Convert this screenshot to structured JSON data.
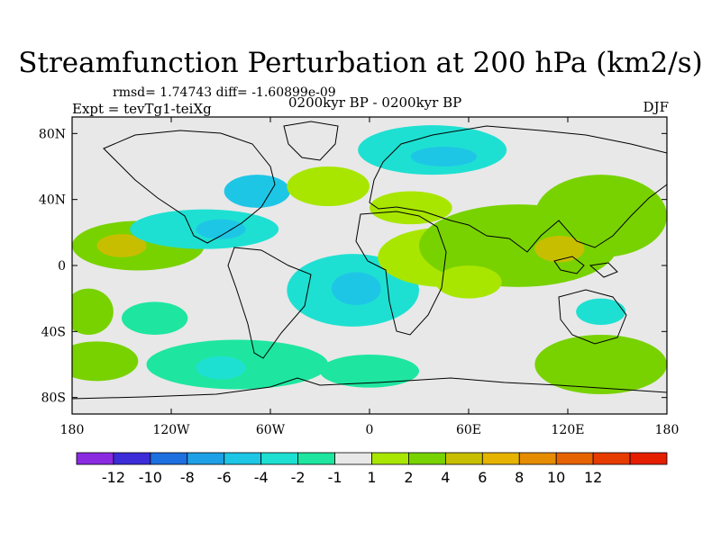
{
  "chart_data": {
    "type": "heatmap",
    "title": "Streamfunction Perturbation at 200 hPa (km2/s)",
    "stats": "rmsd= 1.74743 diff= -1.60899e-09",
    "left_label": "Expt = tevTg1-teiXg",
    "center_label": "0200kyr BP - 0200kyr BP",
    "right_label": "DJF",
    "xlim": [
      -180,
      180
    ],
    "ylim": [
      -90,
      90
    ],
    "x_ticks": [
      {
        "v": -180,
        "label": "180"
      },
      {
        "v": -120,
        "label": "120W"
      },
      {
        "v": -60,
        "label": "60W"
      },
      {
        "v": 0,
        "label": "0"
      },
      {
        "v": 60,
        "label": "60E"
      },
      {
        "v": 120,
        "label": "120E"
      },
      {
        "v": 180,
        "label": "180"
      }
    ],
    "y_ticks": [
      {
        "v": 80,
        "label": "80N"
      },
      {
        "v": 40,
        "label": "40N"
      },
      {
        "v": 0,
        "label": "0"
      },
      {
        "v": -40,
        "label": "40S"
      },
      {
        "v": -80,
        "label": "80S"
      }
    ],
    "colorbar": {
      "colors": [
        "#8a2be2",
        "#3c2dd8",
        "#1e6fe0",
        "#1ea0e6",
        "#1ec6e6",
        "#1ee0d2",
        "#1ee6a0",
        "#e8e8e8",
        "#a8e600",
        "#78d200",
        "#c8be00",
        "#e6b400",
        "#e68c00",
        "#e66400",
        "#e63c00",
        "#e61e00"
      ],
      "labels": [
        "-12",
        "-10",
        "-8",
        "-6",
        "-4",
        "-2",
        "-1",
        "1",
        "2",
        "4",
        "6",
        "8",
        "10",
        "12"
      ]
    },
    "regions": [
      {
        "lon": -140,
        "lat": 12,
        "rx": 40,
        "ry": 15,
        "level": 9
      },
      {
        "lon": -150,
        "lat": 12,
        "rx": 15,
        "ry": 7,
        "level": 10
      },
      {
        "lon": -100,
        "lat": 22,
        "rx": 45,
        "ry": 12,
        "level": 5
      },
      {
        "lon": -90,
        "lat": 22,
        "rx": 15,
        "ry": 6,
        "level": 4
      },
      {
        "lon": -68,
        "lat": 45,
        "rx": 20,
        "ry": 10,
        "level": 4
      },
      {
        "lon": -25,
        "lat": 48,
        "rx": 25,
        "ry": 12,
        "level": 8
      },
      {
        "lon": 38,
        "lat": 70,
        "rx": 45,
        "ry": 15,
        "level": 5
      },
      {
        "lon": 45,
        "lat": 66,
        "rx": 20,
        "ry": 6,
        "level": 4
      },
      {
        "lon": 25,
        "lat": 35,
        "rx": 25,
        "ry": 10,
        "level": 8
      },
      {
        "lon": -10,
        "lat": -15,
        "rx": 40,
        "ry": 22,
        "level": 5
      },
      {
        "lon": -8,
        "lat": -14,
        "rx": 15,
        "ry": 10,
        "level": 4
      },
      {
        "lon": 45,
        "lat": 5,
        "rx": 40,
        "ry": 18,
        "level": 8
      },
      {
        "lon": 90,
        "lat": 12,
        "rx": 60,
        "ry": 25,
        "level": 9
      },
      {
        "lon": 140,
        "lat": 30,
        "rx": 40,
        "ry": 25,
        "level": 9
      },
      {
        "lon": 115,
        "lat": 10,
        "rx": 15,
        "ry": 8,
        "level": 10
      },
      {
        "lon": -170,
        "lat": -28,
        "rx": 15,
        "ry": 14,
        "level": 9
      },
      {
        "lon": -130,
        "lat": -32,
        "rx": 20,
        "ry": 10,
        "level": 6
      },
      {
        "lon": -165,
        "lat": -58,
        "rx": 25,
        "ry": 12,
        "level": 9
      },
      {
        "lon": -80,
        "lat": -60,
        "rx": 55,
        "ry": 15,
        "level": 6
      },
      {
        "lon": -90,
        "lat": -62,
        "rx": 15,
        "ry": 7,
        "level": 5
      },
      {
        "lon": 0,
        "lat": -64,
        "rx": 30,
        "ry": 10,
        "level": 6
      },
      {
        "lon": 140,
        "lat": -60,
        "rx": 40,
        "ry": 18,
        "level": 9
      },
      {
        "lon": 140,
        "lat": -28,
        "rx": 15,
        "ry": 8,
        "level": 5
      },
      {
        "lon": 60,
        "lat": -10,
        "rx": 20,
        "ry": 10,
        "level": 8
      }
    ]
  }
}
